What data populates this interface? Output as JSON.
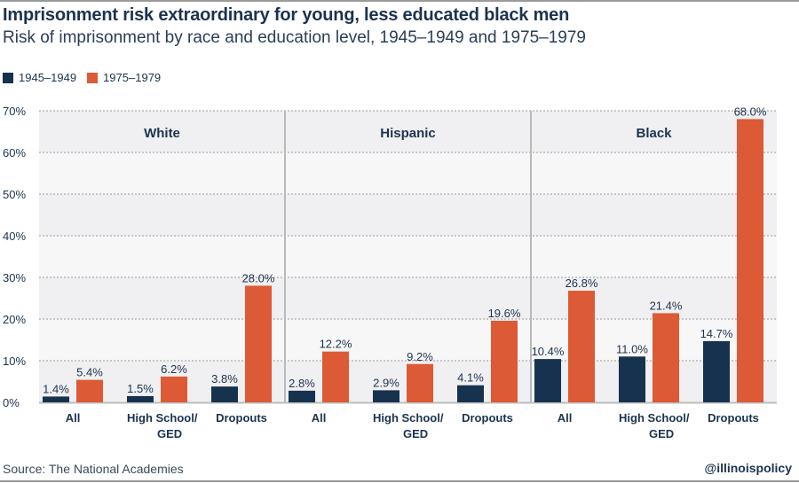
{
  "header": {
    "title": "Imprisonment risk extraordinary for young, less educated black men",
    "subtitle": "Risk of imprisonment by race and education level, 1945–1949 and 1975–1979"
  },
  "footer": {
    "source": "Source: The National Academies",
    "handle": "@illinoispolicy"
  },
  "colors": {
    "series_1945": "#17324f",
    "series_1975": "#dc5a35",
    "text": "#1c3350",
    "band_dark": "#f0eff1",
    "band_light": "#f8f7f7",
    "grid": "#9a9a9a",
    "divider": "#b9b9b9"
  },
  "chart_data": {
    "type": "bar",
    "title": "Imprisonment risk extraordinary for young, less educated black men",
    "subtitle": "Risk of imprisonment by race and education level, 1945–1949 and 1975–1979",
    "xlabel": "",
    "ylabel": "",
    "ylim": [
      0,
      70
    ],
    "yticks": [
      0,
      10,
      20,
      30,
      40,
      50,
      60,
      70
    ],
    "ytick_labels": [
      "0%",
      "10%",
      "20%",
      "30%",
      "40%",
      "50%",
      "60%",
      "70%"
    ],
    "grid": true,
    "legend_position": "top-left",
    "legend": [
      "1945–1949",
      "1975–1979"
    ],
    "panels": [
      "White",
      "Hispanic",
      "Black"
    ],
    "categories": [
      "All",
      "High School/\nGED",
      "Dropouts"
    ],
    "category_lines": [
      [
        "All"
      ],
      [
        "High School/",
        "GED"
      ],
      [
        "Dropouts"
      ]
    ],
    "series": [
      {
        "name": "1945–1949",
        "values": {
          "White": [
            1.4,
            1.5,
            3.8
          ],
          "Hispanic": [
            2.8,
            2.9,
            4.1
          ],
          "Black": [
            10.4,
            11.0,
            14.7
          ]
        },
        "labels": {
          "White": [
            "1.4%",
            "1.5%",
            "3.8%"
          ],
          "Hispanic": [
            "2.8%",
            "2.9%",
            "4.1%"
          ],
          "Black": [
            "10.4%",
            "11.0%",
            "14.7%"
          ]
        }
      },
      {
        "name": "1975–1979",
        "values": {
          "White": [
            5.4,
            6.2,
            28.0
          ],
          "Hispanic": [
            12.2,
            9.2,
            19.6
          ],
          "Black": [
            26.8,
            21.4,
            68.0
          ]
        },
        "labels": {
          "White": [
            "5.4%",
            "6.2%",
            "28.0%"
          ],
          "Hispanic": [
            "12.2%",
            "9.2%",
            "19.6%"
          ],
          "Black": [
            "26.8%",
            "21.4%",
            "68.0%"
          ]
        }
      }
    ]
  }
}
